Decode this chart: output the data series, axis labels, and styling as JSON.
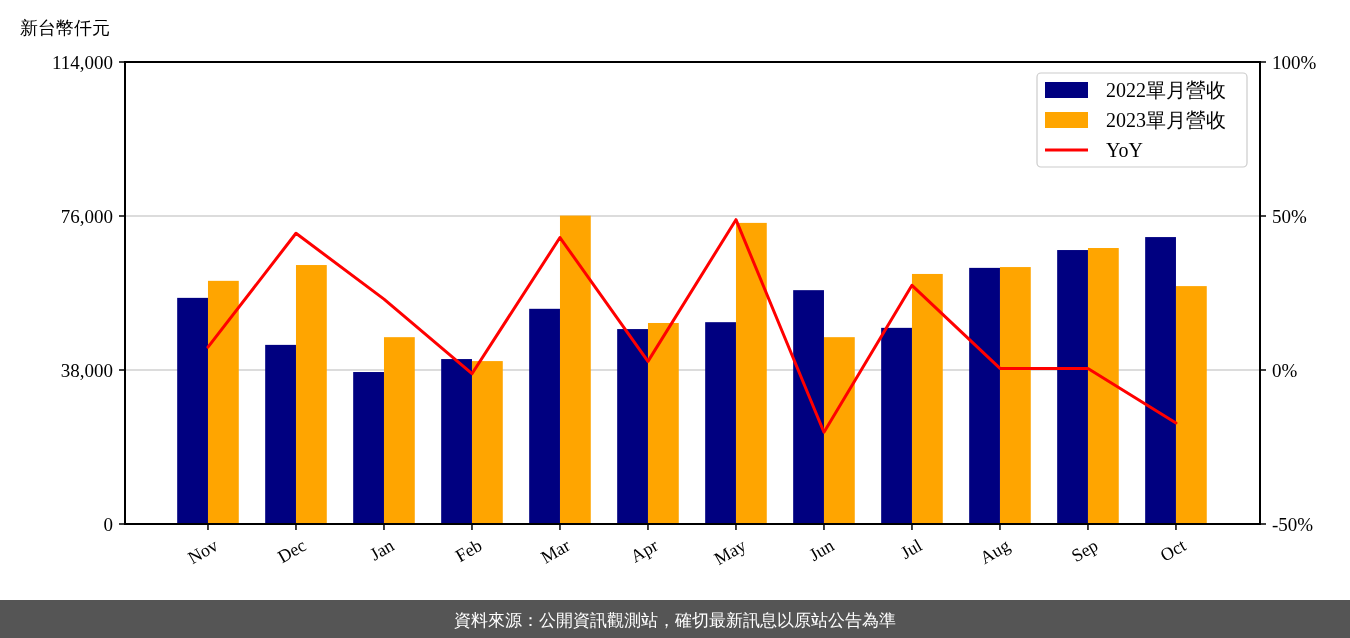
{
  "chart_data": {
    "type": "bar",
    "ylabel": "新台幣仟元",
    "categories": [
      "Nov",
      "Dec",
      "Jan",
      "Feb",
      "Mar",
      "Apr",
      "May",
      "Jun",
      "Jul",
      "Aug",
      "Sep",
      "Oct"
    ],
    "series": [
      {
        "name": "2022單月營收",
        "color": "#000080",
        "values": [
          55800,
          44200,
          37500,
          40700,
          53100,
          48100,
          49800,
          57700,
          48400,
          63200,
          67600,
          70800
        ]
      },
      {
        "name": "2023單月營收",
        "color": "#ffa500",
        "values": [
          60000,
          63900,
          46100,
          40200,
          76100,
          49600,
          74300,
          46100,
          61700,
          63400,
          68100,
          58700
        ]
      },
      {
        "name": "YoY",
        "type": "line",
        "axis": "y2",
        "color": "#ff0000",
        "values": [
          7.4,
          44.4,
          23,
          -1.2,
          43,
          2.8,
          48.8,
          -20.2,
          27.5,
          0.5,
          0.5,
          -17.2
        ]
      }
    ],
    "ylim": [
      0,
      114000
    ],
    "yticks": [
      0,
      {
        "value": 38000,
        "label": "38,000"
      },
      {
        "value": 76000,
        "label": "76,000"
      },
      {
        "value": 114000,
        "label": "114,000"
      }
    ],
    "y2lim": [
      -50,
      100
    ],
    "y2ticks": [
      {
        "value": -50,
        "label": "-50%"
      },
      {
        "value": 0,
        "label": "0%"
      },
      {
        "value": 50,
        "label": "50%"
      },
      {
        "value": 100,
        "label": "100%"
      }
    ],
    "grid": "y",
    "legend": "top right",
    "annotations": [
      "資料來源：公開資訊觀測站，確切最新訊息以原站公告為準"
    ]
  }
}
